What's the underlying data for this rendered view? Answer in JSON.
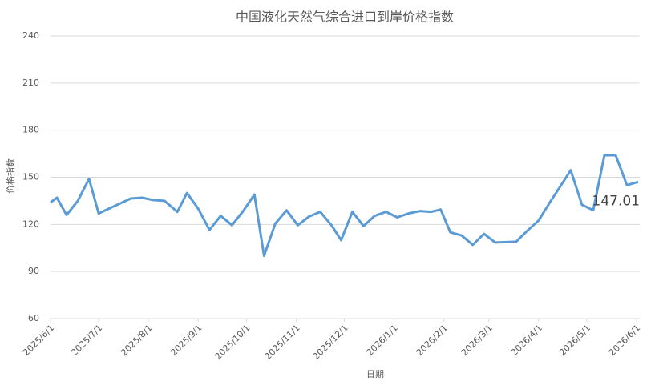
{
  "chart_data": {
    "type": "line",
    "title": "中国液化天然气综合进口到岸价格指数",
    "x_label": "日期",
    "y_label": "价格指数",
    "x": [
      "2025/6/1",
      "2025/6/5",
      "2025/6/11",
      "2025/6/18",
      "2025/6/25",
      "2025/7/1",
      "2025/7/21",
      "2025/7/28",
      "2025/8/4",
      "2025/8/11",
      "2025/8/19",
      "2025/8/25",
      "2025/9/1",
      "2025/9/8",
      "2025/9/15",
      "2025/9/22",
      "2025/9/29",
      "2025/10/6",
      "2025/10/12",
      "2025/10/19",
      "2025/10/26",
      "2025/11/2",
      "2025/11/9",
      "2025/11/16",
      "2025/11/23",
      "2025/11/29",
      "2025/12/6",
      "2025/12/13",
      "2025/12/20",
      "2025/12/27",
      "2026/1/3",
      "2026/1/10",
      "2026/1/17",
      "2026/1/24",
      "2026/1/30",
      "2026/2/5",
      "2026/2/12",
      "2026/2/19",
      "2026/2/26",
      "2026/3/5",
      "2026/3/18",
      "2026/3/25",
      "2026/4/1",
      "2026/4/8",
      "2026/4/15",
      "2026/4/21",
      "2026/4/28",
      "2026/5/5",
      "2026/5/12",
      "2026/5/19",
      "2026/5/26",
      "2026/6/2"
    ],
    "series": [
      {
        "name": "价格指数",
        "color": "#5b9bd5",
        "values": [
          134,
          137,
          126,
          135,
          149,
          127,
          136.5,
          137,
          135.5,
          135,
          128,
          140,
          130,
          116.5,
          125.5,
          119.5,
          128.5,
          139,
          100,
          120.5,
          129,
          119.5,
          125,
          128,
          119.5,
          110,
          128,
          119,
          125.5,
          128,
          124.5,
          127,
          128.5,
          128,
          129.5,
          115,
          113,
          107,
          114,
          108.5,
          109,
          116,
          122.5,
          134,
          145,
          154.5,
          132.5,
          129,
          164,
          164,
          145,
          147.01
        ]
      }
    ],
    "label_last": true,
    "xlim": [
      "2025/6/1",
      "2026/6/2"
    ],
    "xticks": [
      "2025/6/1",
      "2025/7/1",
      "2025/8/1",
      "2025/9/1",
      "2025/10/1",
      "2025/11/1",
      "2025/12/1",
      "2026/1/1",
      "2026/2/1",
      "2026/3/1",
      "2026/4/1",
      "2026/5/1",
      "2026/6/1"
    ],
    "ylim": [
      60,
      240
    ],
    "yticks": [
      60,
      90,
      120,
      150,
      180,
      210,
      240
    ],
    "grid": true
  }
}
